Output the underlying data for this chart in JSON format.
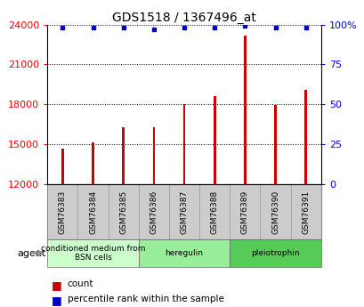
{
  "title": "GDS1518 / 1367496_at",
  "samples": [
    "GSM76383",
    "GSM76384",
    "GSM76385",
    "GSM76386",
    "GSM76387",
    "GSM76388",
    "GSM76389",
    "GSM76390",
    "GSM76391"
  ],
  "counts": [
    14700,
    15150,
    16300,
    16300,
    18000,
    18600,
    23200,
    17950,
    19100
  ],
  "percentile_ranks": [
    98,
    98,
    98,
    97,
    98,
    98,
    99,
    98,
    98
  ],
  "ymin": 12000,
  "ymax": 24000,
  "yticks": [
    12000,
    15000,
    18000,
    21000,
    24000
  ],
  "y2min": 0,
  "y2max": 100,
  "y2ticks": [
    0,
    25,
    50,
    75,
    100
  ],
  "y2ticklabels": [
    "0",
    "25",
    "50",
    "75",
    "100%"
  ],
  "bar_color": "#cc0000",
  "dot_color": "#0000cc",
  "groups": [
    {
      "label": "conditioned medium from\nBSN cells",
      "start": 0,
      "end": 3,
      "color": "#ccffcc"
    },
    {
      "label": "heregulin",
      "start": 3,
      "end": 6,
      "color": "#99ee99"
    },
    {
      "label": "pleiotrophin",
      "start": 6,
      "end": 9,
      "color": "#55cc55"
    }
  ],
  "agent_label": "agent",
  "legend_count_label": "count",
  "legend_pct_label": "percentile rank within the sample",
  "label_area_color": "#cccccc",
  "bar_width": 0.08
}
